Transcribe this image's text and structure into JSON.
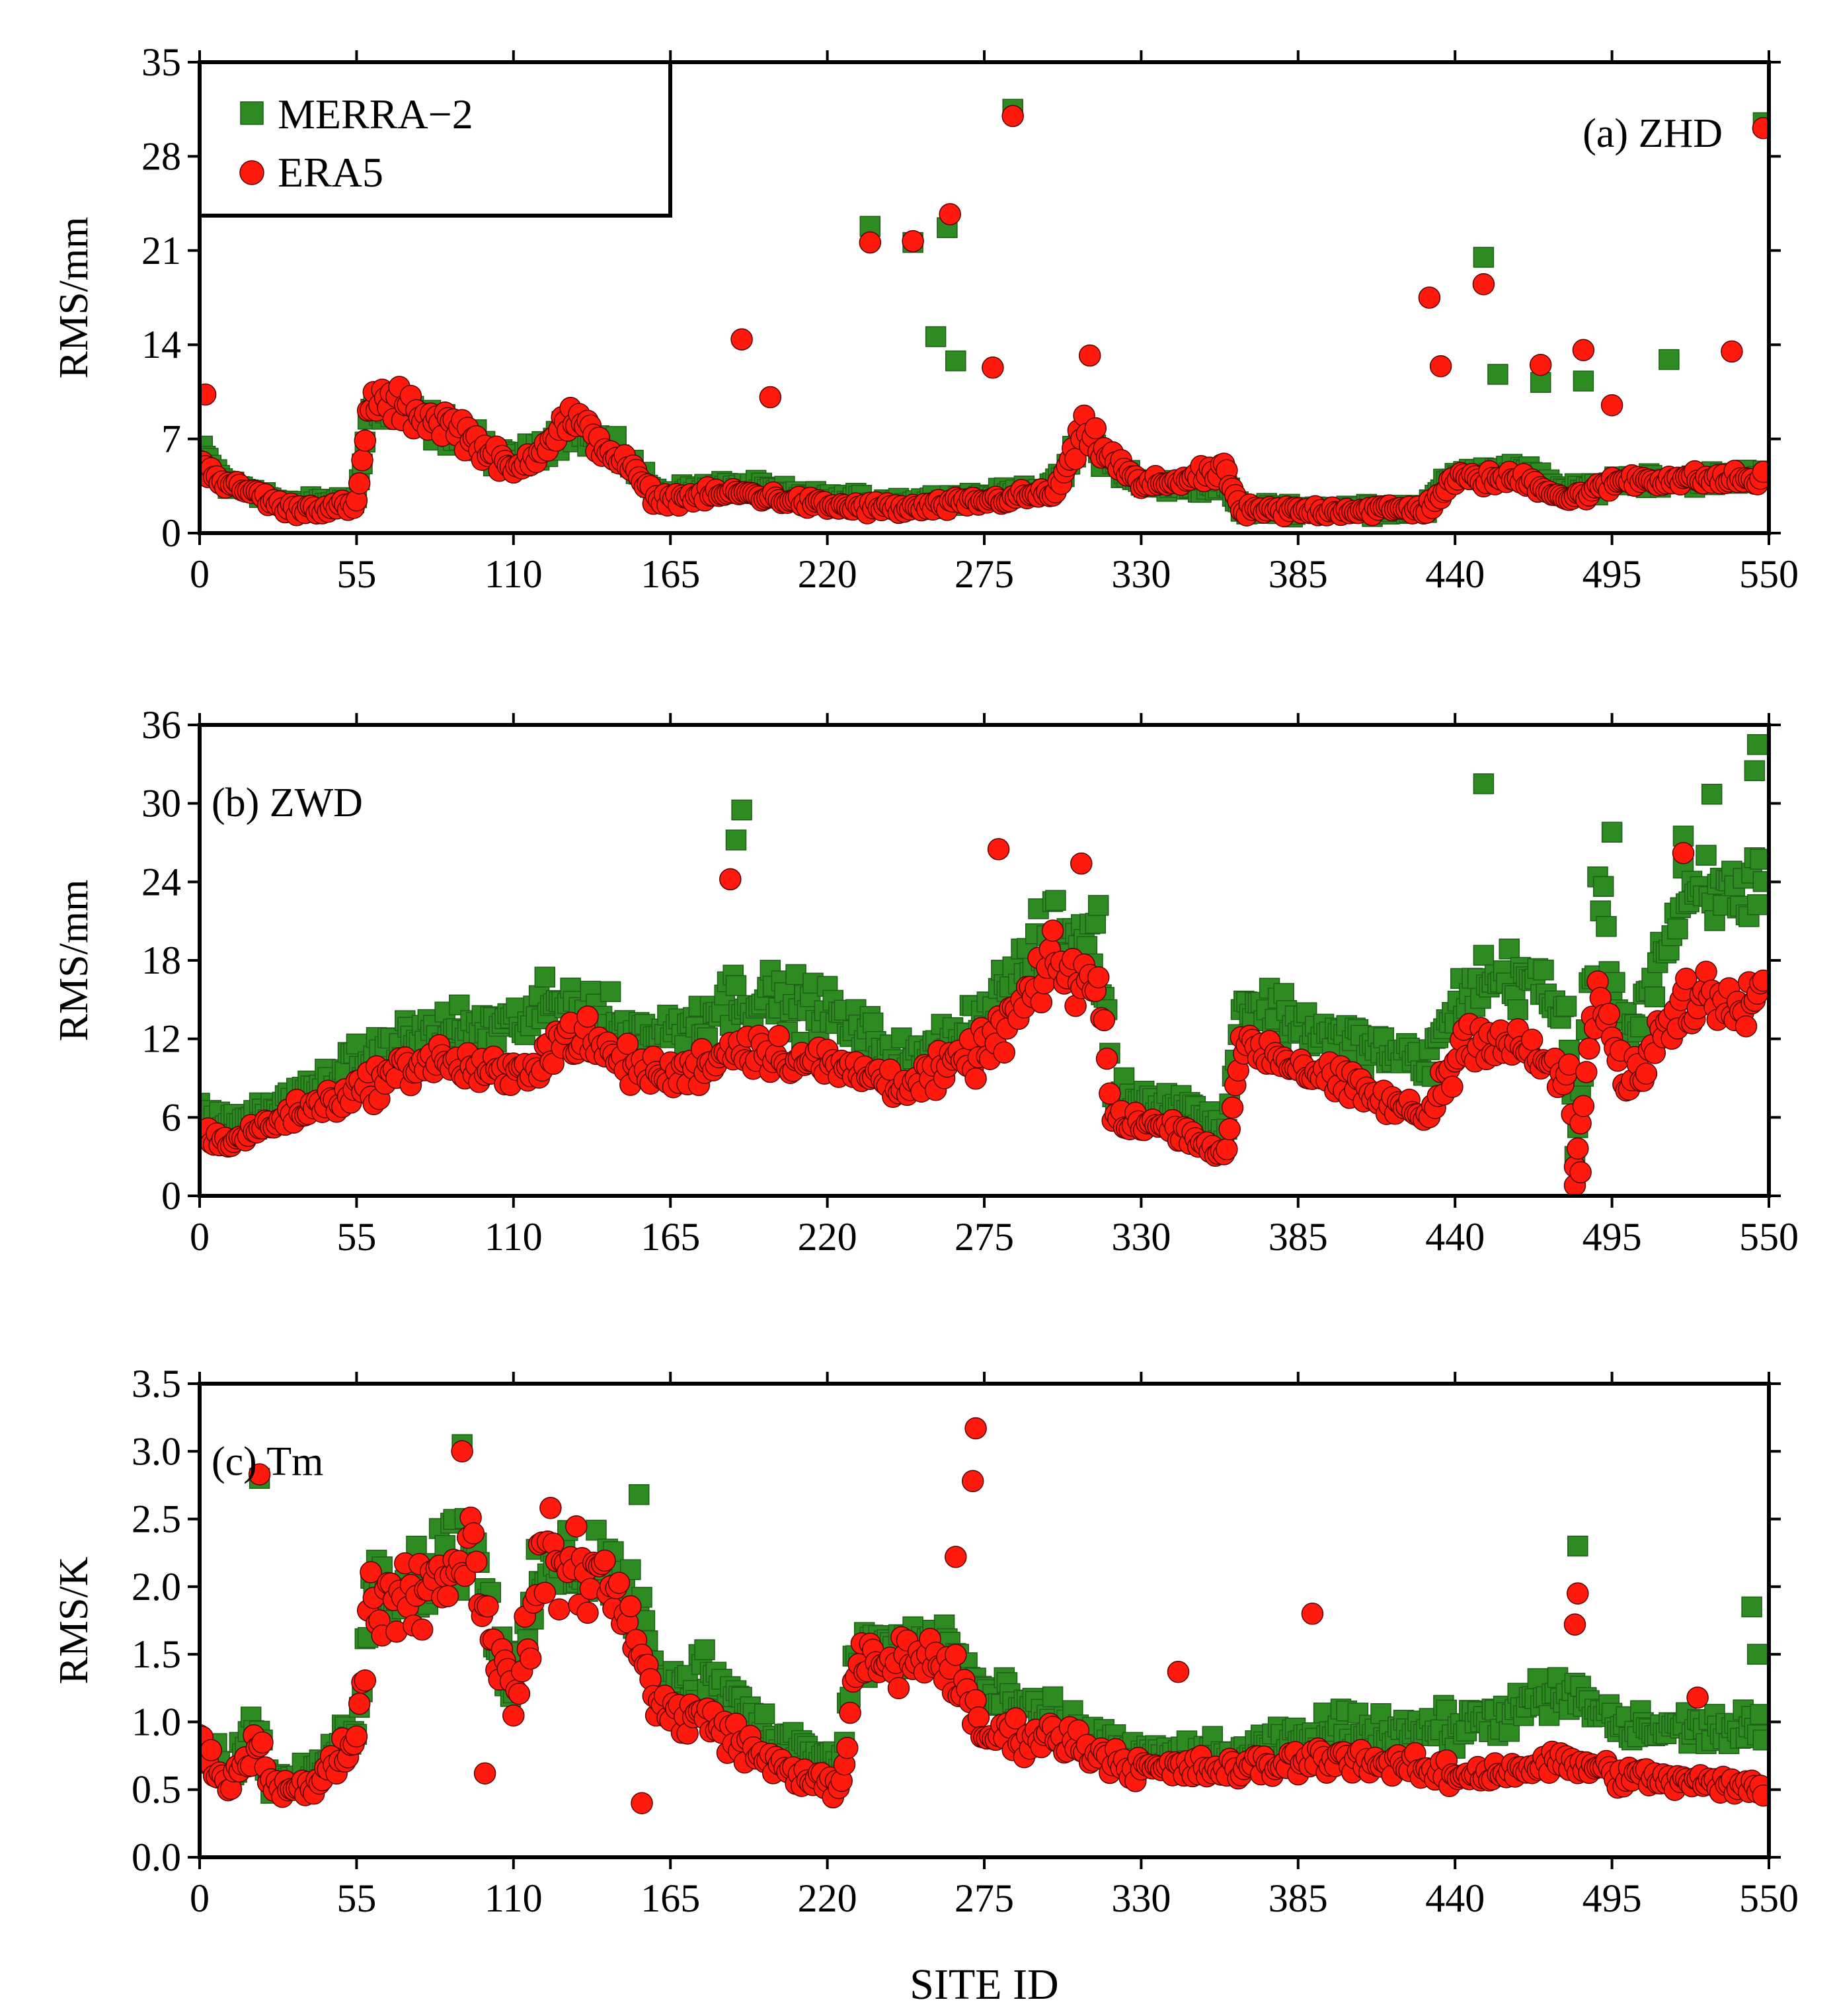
{
  "colors": {
    "merra2_fill": "#2e8b22",
    "merra2_edge": "#1f5e18",
    "era5_fill": "#ff1a0d",
    "era5_edge": "#5a0000",
    "axis": "#000000"
  },
  "legend": {
    "merra2_label": "MERRA−2",
    "era5_label": "ERA5"
  },
  "shared_xlabel": "SITE ID",
  "chart_data": [
    {
      "type": "scatter",
      "id": "zhd",
      "panel_label": "(a) ZHD",
      "ylabel": "RMS/mm",
      "xlim": [
        0,
        550
      ],
      "ylim": [
        0,
        35
      ],
      "xticks": [
        "0",
        "55",
        "110",
        "165",
        "220",
        "275",
        "330",
        "385",
        "440",
        "495",
        "550"
      ],
      "yticks": [
        "0",
        "7",
        "14",
        "21",
        "28",
        "35"
      ],
      "series": [
        {
          "name": "MERRA−2",
          "marker": "square",
          "outliers": [
            [
              235,
              22.8
            ],
            [
              250,
              21.6
            ],
            [
              258,
              14.6
            ],
            [
              262,
              22.7
            ],
            [
              265,
              12.8
            ],
            [
              285,
              31.5
            ],
            [
              450,
              20.5
            ],
            [
              455,
              11.8
            ],
            [
              470,
              11.2
            ],
            [
              485,
              11.3
            ],
            [
              515,
              12.9
            ],
            [
              548,
              30.5
            ]
          ],
          "profile": [
            [
              0,
              6.0
            ],
            [
              10,
              3.5
            ],
            [
              20,
              3.2
            ],
            [
              30,
              2.0
            ],
            [
              55,
              2.5
            ],
            [
              60,
              9.5
            ],
            [
              75,
              8.5
            ],
            [
              90,
              7.5
            ],
            [
              110,
              5.0
            ],
            [
              130,
              8.0
            ],
            [
              150,
              5.5
            ],
            [
              160,
              3.0
            ],
            [
              190,
              3.5
            ],
            [
              220,
              2.5
            ],
            [
              250,
              2.3
            ],
            [
              280,
              2.8
            ],
            [
              300,
              3.5
            ],
            [
              310,
              7.0
            ],
            [
              330,
              3.5
            ],
            [
              360,
              3.5
            ],
            [
              365,
              1.8
            ],
            [
              430,
              1.8
            ],
            [
              440,
              4.5
            ],
            [
              465,
              4.5
            ],
            [
              480,
              3.0
            ],
            [
              500,
              4.0
            ],
            [
              520,
              4.0
            ],
            [
              550,
              4.2
            ]
          ]
        },
        {
          "name": "ERA5",
          "marker": "circle",
          "outliers": [
            [
              2,
              10.3
            ],
            [
              190,
              14.4
            ],
            [
              200,
              10.1
            ],
            [
              235,
              21.6
            ],
            [
              250,
              21.7
            ],
            [
              263,
              23.7
            ],
            [
              278,
              12.3
            ],
            [
              285,
              31.0
            ],
            [
              312,
              13.2
            ],
            [
              431,
              17.5
            ],
            [
              435,
              12.4
            ],
            [
              450,
              18.5
            ],
            [
              470,
              12.5
            ],
            [
              485,
              13.6
            ],
            [
              495,
              9.5
            ],
            [
              537,
              13.5
            ],
            [
              548,
              30.1
            ]
          ],
          "profile": [
            [
              0,
              5.5
            ],
            [
              10,
              3.5
            ],
            [
              20,
              3.0
            ],
            [
              30,
              1.8
            ],
            [
              55,
              2.0
            ],
            [
              60,
              10.0
            ],
            [
              75,
              9.0
            ],
            [
              90,
              8.0
            ],
            [
              110,
              4.5
            ],
            [
              130,
              8.5
            ],
            [
              150,
              5.0
            ],
            [
              160,
              2.5
            ],
            [
              190,
              3.0
            ],
            [
              220,
              2.0
            ],
            [
              250,
              1.8
            ],
            [
              280,
              2.5
            ],
            [
              300,
              3.0
            ],
            [
              310,
              7.5
            ],
            [
              330,
              3.5
            ],
            [
              360,
              4.5
            ],
            [
              365,
              1.6
            ],
            [
              430,
              1.8
            ],
            [
              440,
              4.0
            ],
            [
              465,
              4.0
            ],
            [
              480,
              2.5
            ],
            [
              500,
              4.0
            ],
            [
              520,
              4.0
            ],
            [
              550,
              4.0
            ]
          ]
        }
      ]
    },
    {
      "type": "scatter",
      "id": "zwd",
      "panel_label": "(b) ZWD",
      "ylabel": "RMS/mm",
      "xlim": [
        0,
        550
      ],
      "ylim": [
        0,
        36
      ],
      "xticks": [
        "0",
        "55",
        "110",
        "165",
        "220",
        "275",
        "330",
        "385",
        "440",
        "495",
        "550"
      ],
      "yticks": [
        "0",
        "6",
        "12",
        "18",
        "24",
        "30",
        "36"
      ],
      "series": [
        {
          "name": "MERRA−2",
          "marker": "square",
          "outliers": [
            [
              190,
              29.5
            ],
            [
              188,
              27.2
            ],
            [
              450,
              31.5
            ],
            [
              530,
              30.7
            ],
            [
              546,
              34.5
            ],
            [
              545,
              32.5
            ],
            [
              520,
              27.5
            ],
            [
              495,
              27.8
            ]
          ],
          "profile": [
            [
              0,
              6.5
            ],
            [
              10,
              5.5
            ],
            [
              30,
              7.0
            ],
            [
              55,
              10.0
            ],
            [
              80,
              12.5
            ],
            [
              110,
              13.0
            ],
            [
              130,
              15.0
            ],
            [
              150,
              12.5
            ],
            [
              165,
              12.5
            ],
            [
              190,
              15.5
            ],
            [
              220,
              14.0
            ],
            [
              250,
              10.0
            ],
            [
              275,
              14.0
            ],
            [
              300,
              20.0
            ],
            [
              315,
              20.0
            ],
            [
              320,
              8.0
            ],
            [
              345,
              7.0
            ],
            [
              360,
              5.0
            ],
            [
              365,
              15.0
            ],
            [
              400,
              12.0
            ],
            [
              430,
              10.0
            ],
            [
              445,
              16.0
            ],
            [
              465,
              17.0
            ],
            [
              480,
              13.0
            ],
            [
              482,
              3.0
            ],
            [
              490,
              22.0
            ],
            [
              500,
              12.0
            ],
            [
              520,
              22.0
            ],
            [
              550,
              24.0
            ]
          ]
        },
        {
          "name": "ERA5",
          "marker": "circle",
          "outliers": [
            [
              186,
              24.2
            ],
            [
              280,
              26.5
            ],
            [
              520,
              26.2
            ],
            [
              309,
              25.4
            ],
            [
              482,
              0.8
            ],
            [
              484,
              1.8
            ]
          ],
          "profile": [
            [
              0,
              5.0
            ],
            [
              10,
              4.0
            ],
            [
              30,
              6.0
            ],
            [
              55,
              8.0
            ],
            [
              80,
              10.5
            ],
            [
              110,
              9.0
            ],
            [
              130,
              12.5
            ],
            [
              150,
              10.0
            ],
            [
              165,
              9.0
            ],
            [
              190,
              11.5
            ],
            [
              220,
              10.0
            ],
            [
              250,
              8.5
            ],
            [
              275,
              11.0
            ],
            [
              300,
              17.5
            ],
            [
              315,
              16.0
            ],
            [
              320,
              6.0
            ],
            [
              345,
              5.0
            ],
            [
              360,
              3.0
            ],
            [
              365,
              12.0
            ],
            [
              400,
              8.5
            ],
            [
              430,
              6.0
            ],
            [
              445,
              12.5
            ],
            [
              465,
              11.0
            ],
            [
              480,
              9.0
            ],
            [
              482,
              2.0
            ],
            [
              490,
              16.0
            ],
            [
              500,
              8.0
            ],
            [
              520,
              15.0
            ],
            [
              550,
              16.0
            ]
          ]
        }
      ]
    },
    {
      "type": "scatter",
      "id": "tm",
      "panel_label": "(c) Tm",
      "ylabel": "RMS/K",
      "xlim": [
        0,
        550
      ],
      "ylim": [
        0,
        3.5
      ],
      "xticks": [
        "0",
        "55",
        "110",
        "165",
        "220",
        "275",
        "330",
        "385",
        "440",
        "495",
        "550"
      ],
      "yticks": [
        "0.0",
        "0.5",
        "1.0",
        "1.5",
        "2.0",
        "2.5",
        "3.0",
        "3.5"
      ],
      "series": [
        {
          "name": "MERRA−2",
          "marker": "square",
          "outliers": [
            [
              21,
              2.8
            ],
            [
              92,
              3.05
            ],
            [
              154,
              2.68
            ],
            [
              483,
              2.3
            ],
            [
              544,
              1.85
            ],
            [
              546,
              1.5
            ]
          ],
          "profile": [
            [
              0,
              0.9
            ],
            [
              10,
              0.6
            ],
            [
              20,
              1.0
            ],
            [
              25,
              0.55
            ],
            [
              40,
              0.6
            ],
            [
              55,
              1.0
            ],
            [
              60,
              2.0
            ],
            [
              80,
              2.1
            ],
            [
              95,
              2.4
            ],
            [
              110,
              1.2
            ],
            [
              120,
              2.1
            ],
            [
              140,
              2.2
            ],
            [
              155,
              1.8
            ],
            [
              160,
              1.2
            ],
            [
              180,
              1.4
            ],
            [
              200,
              0.9
            ],
            [
              225,
              0.7
            ],
            [
              230,
              1.5
            ],
            [
              260,
              1.6
            ],
            [
              275,
              1.2
            ],
            [
              300,
              1.0
            ],
            [
              330,
              0.75
            ],
            [
              365,
              0.75
            ],
            [
              400,
              0.95
            ],
            [
              440,
              0.95
            ],
            [
              480,
              1.2
            ],
            [
              500,
              0.95
            ],
            [
              550,
              0.95
            ]
          ]
        },
        {
          "name": "ERA5",
          "marker": "circle",
          "outliers": [
            [
              21,
              2.83
            ],
            [
              92,
              3.0
            ],
            [
              272,
              3.17
            ],
            [
              271,
              2.78
            ],
            [
              265,
              2.22
            ],
            [
              390,
              1.8
            ],
            [
              483,
              1.95
            ],
            [
              482,
              1.72
            ],
            [
              100,
              0.62
            ],
            [
              343,
              1.37
            ],
            [
              525,
              1.18
            ],
            [
              155,
              0.4
            ]
          ],
          "profile": [
            [
              0,
              0.8
            ],
            [
              10,
              0.5
            ],
            [
              20,
              0.9
            ],
            [
              25,
              0.55
            ],
            [
              40,
              0.5
            ],
            [
              55,
              0.9
            ],
            [
              60,
              1.9
            ],
            [
              80,
              2.0
            ],
            [
              95,
              2.3
            ],
            [
              110,
              1.1
            ],
            [
              120,
              2.2
            ],
            [
              140,
              2.1
            ],
            [
              155,
              1.6
            ],
            [
              160,
              1.1
            ],
            [
              180,
              1.0
            ],
            [
              200,
              0.7
            ],
            [
              225,
              0.5
            ],
            [
              230,
              1.4
            ],
            [
              260,
              1.5
            ],
            [
              275,
              0.9
            ],
            [
              300,
              0.9
            ],
            [
              330,
              0.65
            ],
            [
              365,
              0.65
            ],
            [
              400,
              0.75
            ],
            [
              440,
              0.6
            ],
            [
              480,
              0.7
            ],
            [
              500,
              0.6
            ],
            [
              550,
              0.5
            ]
          ]
        }
      ]
    }
  ]
}
